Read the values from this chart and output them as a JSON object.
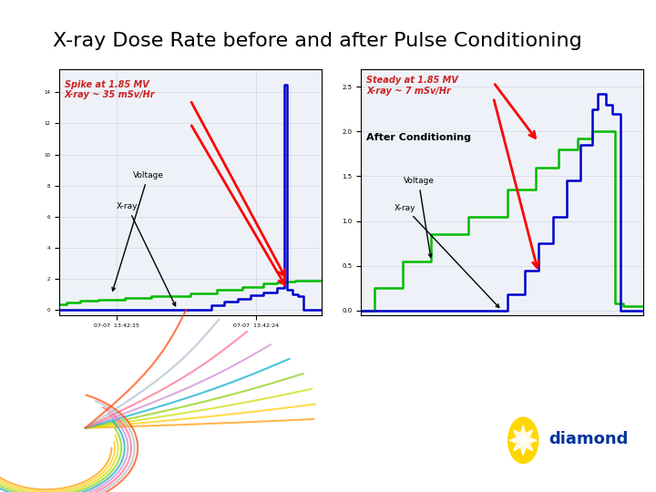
{
  "title": "X-ray Dose Rate before and after Pulse Conditioning",
  "title_fontsize": 16,
  "background_color": "#ffffff",
  "left_plot": {
    "green_x": [
      0,
      3,
      3,
      8,
      8,
      15,
      15,
      25,
      25,
      35,
      35,
      50,
      50,
      60,
      60,
      70,
      70,
      78,
      78,
      83,
      83,
      87,
      87,
      90,
      90,
      100
    ],
    "green_y": [
      0.4,
      0.4,
      0.5,
      0.5,
      0.6,
      0.6,
      0.7,
      0.7,
      0.8,
      0.8,
      0.9,
      0.9,
      1.1,
      1.1,
      1.3,
      1.3,
      1.5,
      1.5,
      1.7,
      1.7,
      1.8,
      1.8,
      1.85,
      1.85,
      1.9,
      1.9
    ],
    "blue_x": [
      0,
      58,
      58,
      63,
      63,
      68,
      68,
      73,
      73,
      78,
      78,
      83,
      83,
      86,
      86,
      87,
      87,
      89,
      89,
      91,
      91,
      93,
      93,
      100
    ],
    "blue_y": [
      0,
      0,
      0.3,
      0.3,
      0.55,
      0.55,
      0.75,
      0.75,
      0.95,
      0.95,
      1.15,
      1.15,
      1.45,
      1.45,
      14.5,
      14.5,
      1.3,
      1.3,
      1.05,
      1.05,
      0.9,
      0.9,
      0.0,
      0.0
    ],
    "spike_label": "Spike at 1.85 MV\nX-ray ~ 35 mSv/Hr"
  },
  "right_plot": {
    "green_x": [
      0,
      5,
      5,
      15,
      15,
      25,
      25,
      38,
      38,
      52,
      52,
      62,
      62,
      70,
      70,
      77,
      77,
      82,
      82,
      86,
      86,
      90,
      90,
      93,
      93,
      100
    ],
    "green_y": [
      0,
      0,
      0.25,
      0.25,
      0.55,
      0.55,
      0.85,
      0.85,
      1.05,
      1.05,
      1.35,
      1.35,
      1.6,
      1.6,
      1.8,
      1.8,
      1.92,
      1.92,
      2.0,
      2.0,
      2.0,
      2.0,
      0.08,
      0.08,
      0.05,
      0.05
    ],
    "blue_x": [
      0,
      52,
      52,
      58,
      58,
      63,
      63,
      68,
      68,
      73,
      73,
      78,
      78,
      82,
      82,
      84,
      84,
      87,
      87,
      89,
      89,
      92,
      92,
      100
    ],
    "blue_y": [
      0,
      0,
      0.18,
      0.18,
      0.45,
      0.45,
      0.75,
      0.75,
      1.05,
      1.05,
      1.45,
      1.45,
      1.85,
      1.85,
      2.25,
      2.25,
      2.42,
      2.42,
      2.3,
      2.3,
      2.2,
      2.2,
      0.0,
      0.0
    ],
    "steady_label": "Steady at 1.85 MV\nX-ray ~ 7 mSv/Hr",
    "after_label": "After Conditioning"
  },
  "green_color": "#00bb00",
  "blue_color": "#0000cc",
  "red_color": "#cc0000",
  "annotation_red": "#cc2222",
  "label_color": "#000000",
  "swirl_colors": [
    "#ff9900",
    "#ffcc00",
    "#ccdd00",
    "#88cc00",
    "#00aacc",
    "#cc88cc",
    "#ff6688",
    "#aabbcc",
    "#ff4400"
  ],
  "diamond_color": "#003399"
}
